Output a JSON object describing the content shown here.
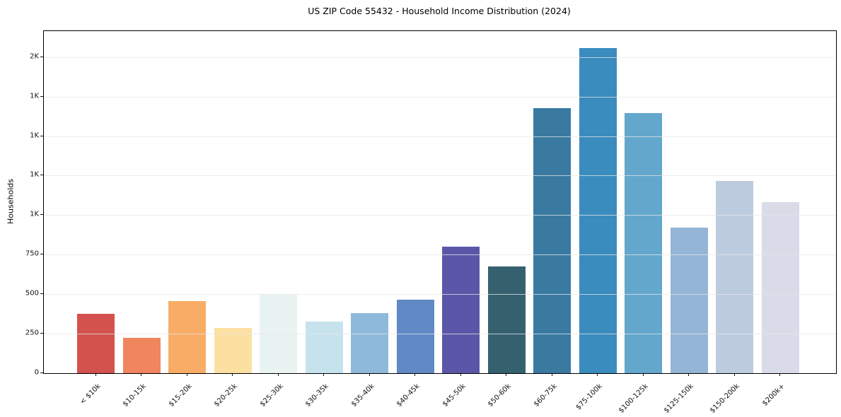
{
  "chart_data": {
    "type": "bar",
    "title": "US ZIP Code 55432 - Household Income Distribution (2024)",
    "xlabel": "",
    "ylabel": "Households",
    "categories": [
      "< $10k",
      "$10-15k",
      "$15-20k",
      "$20-25k",
      "$25-30k",
      "$30-35k",
      "$35-40k",
      "$40-45k",
      "$45-50k",
      "$50-60k",
      "$60-75k",
      "$75-100k",
      "$100-125k",
      "$125-150k",
      "$150-200k",
      "$200k+"
    ],
    "values": [
      375,
      225,
      455,
      285,
      500,
      325,
      380,
      465,
      800,
      675,
      1675,
      2055,
      1645,
      920,
      1215,
      1080
    ],
    "bar_colors": [
      "#d4524e",
      "#f0855e",
      "#f9ac66",
      "#fce0a2",
      "#e9f3f1",
      "#c6e3ed",
      "#8fb9da",
      "#6189c6",
      "#5b57a8",
      "#35616f",
      "#3a7aa1",
      "#3a8cbf",
      "#63a7cc",
      "#94b5d5",
      "#bdcbdf",
      "#d9dbe8"
    ],
    "ylim": [
      0,
      2164
    ],
    "yticks": [
      {
        "v": 0,
        "label": "0"
      },
      {
        "v": 250,
        "label": "250"
      },
      {
        "v": 500,
        "label": "500"
      },
      {
        "v": 750,
        "label": "750"
      },
      {
        "v": 1000,
        "label": "1K"
      },
      {
        "v": 1250,
        "label": "1K"
      },
      {
        "v": 1500,
        "label": "1K"
      },
      {
        "v": 1750,
        "label": "1K"
      },
      {
        "v": 2000,
        "label": "2K"
      }
    ],
    "grid": "horizontal",
    "legend": "none",
    "background": "#ffffff",
    "spine_color": "#000000",
    "grid_color": "#e7e7e7"
  }
}
